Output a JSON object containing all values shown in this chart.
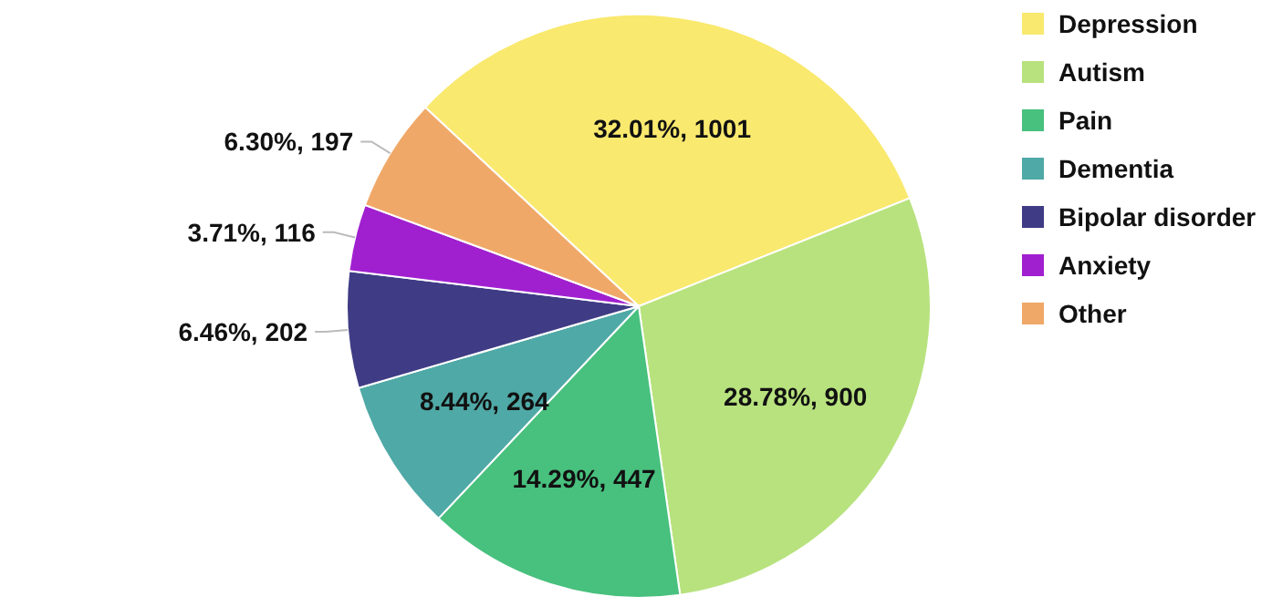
{
  "chart_data": {
    "type": "pie",
    "categories": [
      "Depression",
      "Autism",
      "Pain",
      "Dementia",
      "Bipolar disorder",
      "Anxiety",
      "Other"
    ],
    "values": [
      1001,
      900,
      447,
      264,
      202,
      116,
      197
    ],
    "value_labels": [
      "32.01%, 1001",
      "28.78%, 900",
      "14.29%, 447",
      "8.44%, 264",
      "6.46%, 202",
      "3.71%, 116",
      "6.30%, 197"
    ],
    "colors": [
      "#f9e96e",
      "#b8e27e",
      "#48c07e",
      "#4fa9a6",
      "#3f3c85",
      "#a020d0",
      "#f0a868"
    ],
    "legend": "top right"
  }
}
